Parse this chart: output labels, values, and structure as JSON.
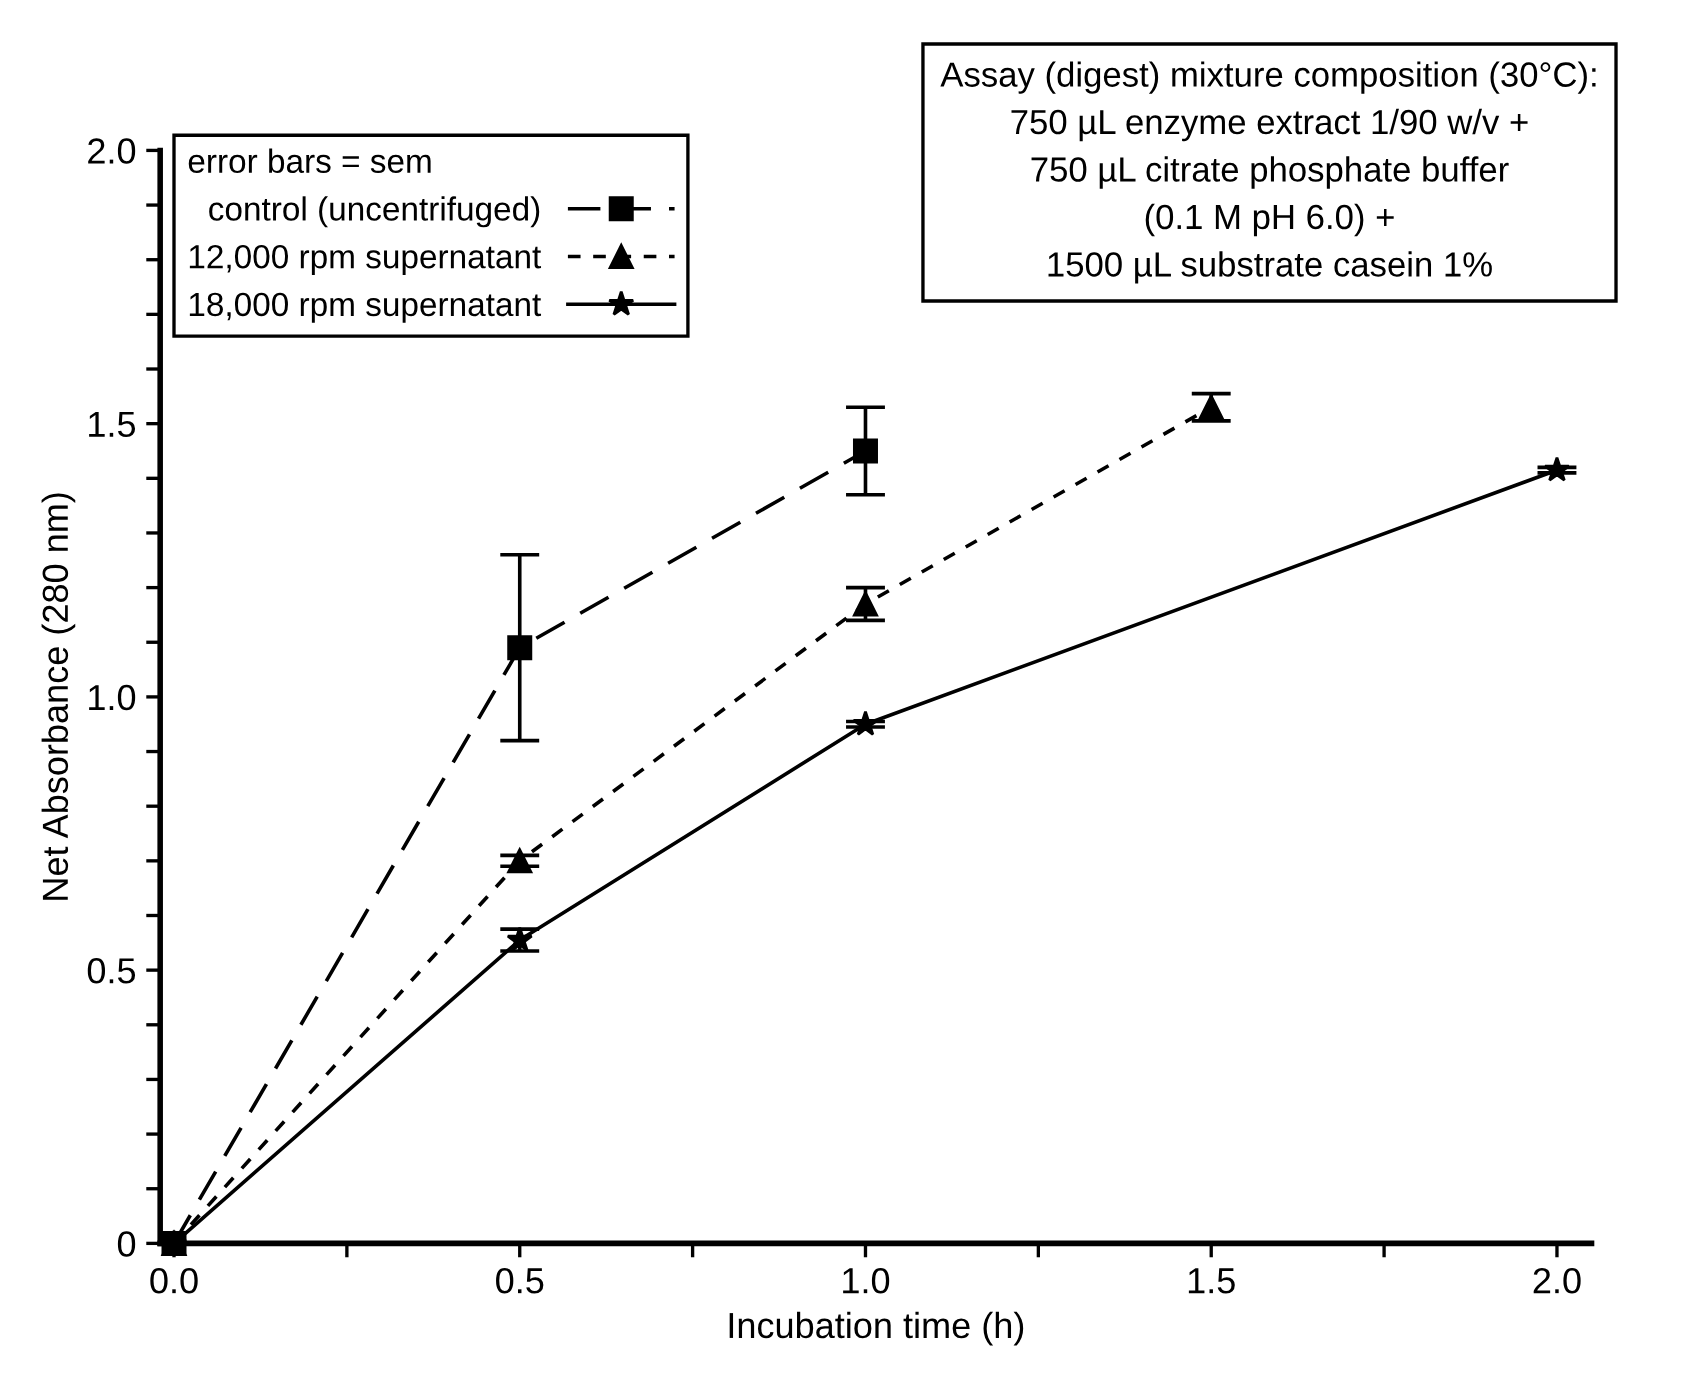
{
  "chart_data": {
    "type": "line",
    "xlabel": "Incubation time (h)",
    "ylabel": "Net Absorbance (280 nm)",
    "legend_title": "error bars = sem",
    "xlim": [
      -0.02,
      2.05
    ],
    "ylim": [
      0,
      2.0
    ],
    "xticks": [
      {
        "value": 0,
        "label": "0.0"
      },
      {
        "value": 0.25,
        "label": null
      },
      {
        "value": 0.5,
        "label": "0.5"
      },
      {
        "value": 0.75,
        "label": null
      },
      {
        "value": 1.0,
        "label": "1.0"
      },
      {
        "value": 1.25,
        "label": null
      },
      {
        "value": 1.5,
        "label": "1.5"
      },
      {
        "value": 1.75,
        "label": null
      },
      {
        "value": 2.0,
        "label": "2.0"
      }
    ],
    "yticks": [
      0,
      {
        "value": 0.1,
        "label": null
      },
      {
        "value": 0.2,
        "label": null
      },
      {
        "value": 0.3,
        "label": null
      },
      {
        "value": 0.4,
        "label": null
      },
      0.5,
      {
        "value": 0.6,
        "label": null
      },
      {
        "value": 0.7,
        "label": null
      },
      {
        "value": 0.8,
        "label": null
      },
      {
        "value": 0.9,
        "label": null
      },
      {
        "value": 1.0,
        "label": "1.0"
      },
      {
        "value": 1.1,
        "label": null
      },
      {
        "value": 1.2,
        "label": null
      },
      {
        "value": 1.3,
        "label": null
      },
      {
        "value": 1.4,
        "label": null
      },
      1.5,
      {
        "value": 1.6,
        "label": null
      },
      {
        "value": 1.7,
        "label": null
      },
      {
        "value": 1.8,
        "label": null
      },
      {
        "value": 1.9,
        "label": null
      },
      {
        "value": 2.0,
        "label": "2.0"
      }
    ],
    "grid": false,
    "legend": "top left",
    "annotations": [
      "Assay (digest) mixture composition (30°C):\n750 µL enzyme extract 1/90 w/v +\n750 µL citrate phosphate buffer\n(0.1 M pH 6.0) +\n1500 µL substrate casein 1%"
    ],
    "series": [
      {
        "name": "control (uncentrifuged)",
        "color": "#000000",
        "marker": "square",
        "line_style": "dashed",
        "x": [
          0,
          0.5,
          1.0
        ],
        "values": [
          0,
          1.09,
          1.45
        ],
        "errors": [
          null,
          0.17,
          0.08
        ]
      },
      {
        "name": "12,000 rpm supernatant",
        "color": "#000000",
        "marker": "triangle",
        "line_style": "dotted",
        "x": [
          0,
          0.5,
          1.0,
          1.5
        ],
        "values": [
          0,
          0.7,
          1.17,
          1.53
        ],
        "errors": [
          null,
          0.01,
          0.03,
          0.025
        ]
      },
      {
        "name": "18,000 rpm supernatant",
        "color": "#000000",
        "marker": "star",
        "line_style": "solid",
        "x": [
          0,
          0.5,
          1.0,
          2.0
        ],
        "values": [
          0,
          0.555,
          0.95,
          1.415
        ],
        "errors": [
          null,
          0.02,
          0.005,
          0.005
        ]
      }
    ]
  }
}
